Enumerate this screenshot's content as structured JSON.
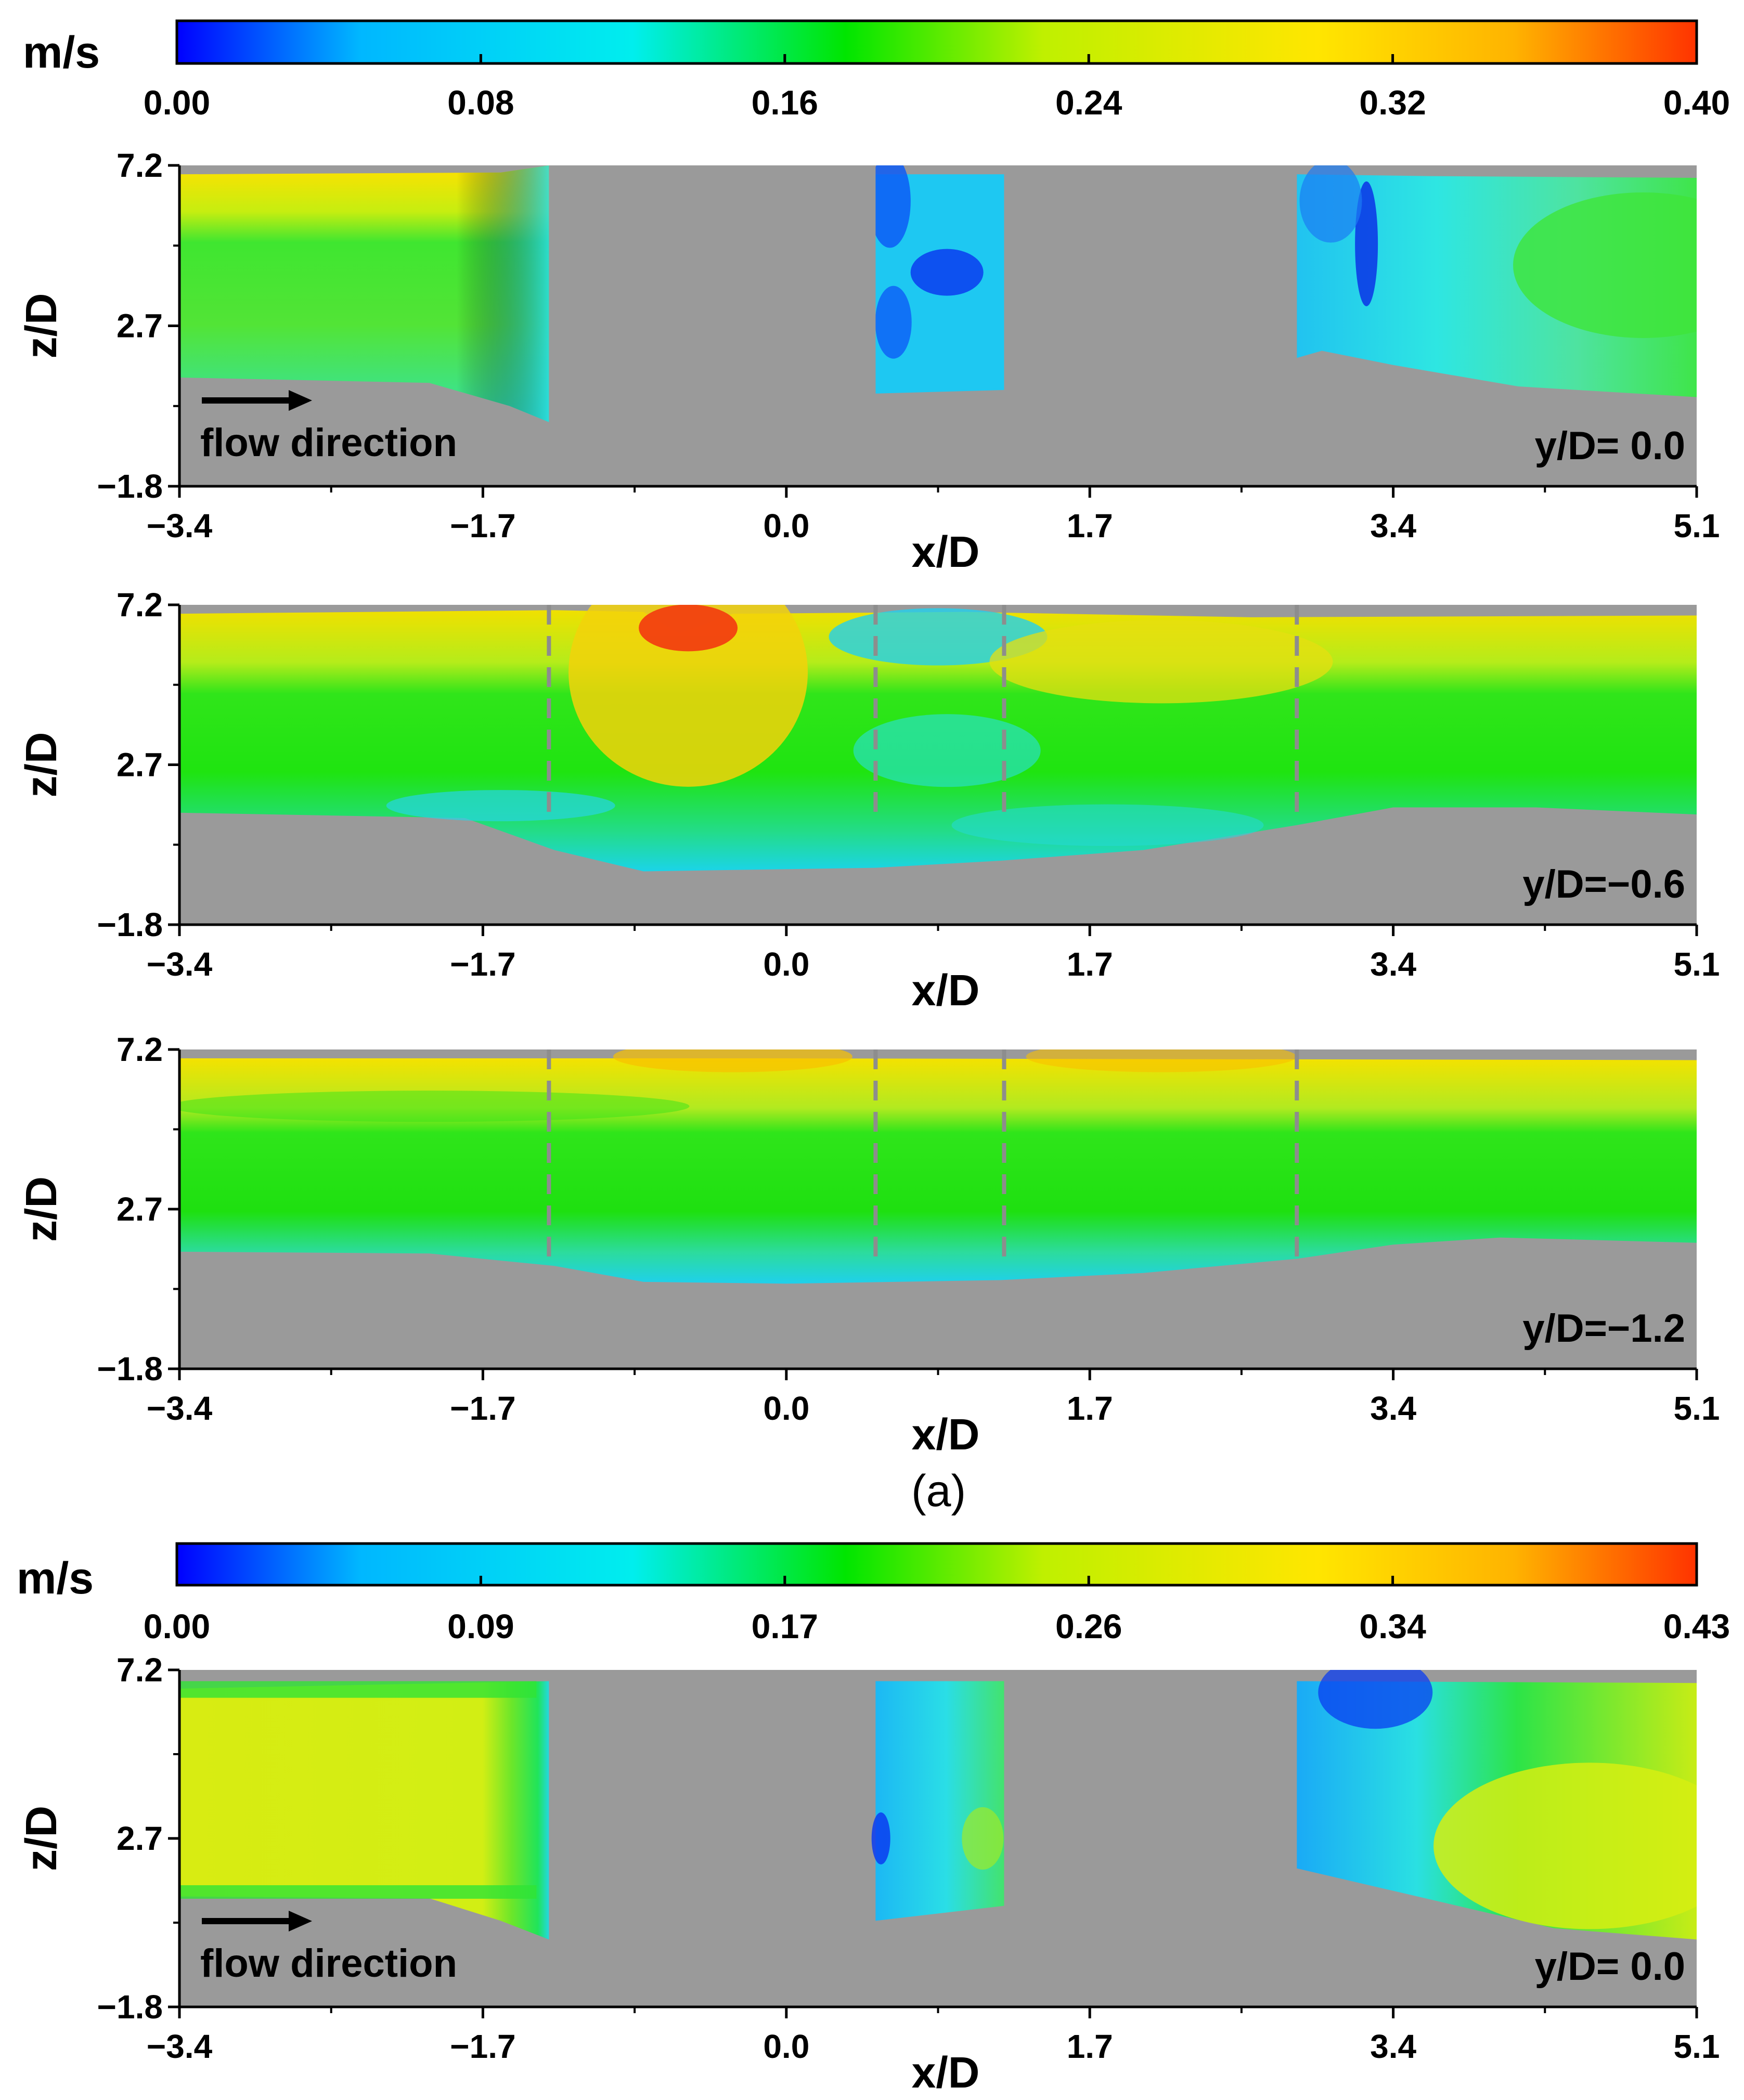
{
  "figure": {
    "panel_label": "(a)"
  },
  "chart_data": [
    {
      "type": "heatmap",
      "colorbar": {
        "unit": "m/s",
        "ticks": [
          "0.00",
          "0.08",
          "0.16",
          "0.24",
          "0.32",
          "0.40"
        ],
        "range": [
          0,
          0.4
        ],
        "colormap": [
          "#0000ff",
          "#00b7ff",
          "#00eeee",
          "#00e600",
          "#bff000",
          "#ffe600",
          "#ffb300",
          "#ff3300"
        ]
      },
      "xlabel": "x/D",
      "ylabel": "z/D",
      "xticks": [
        "−3.4",
        "−1.7",
        "0.0",
        "1.7",
        "3.4",
        "5.1"
      ],
      "yticks": [
        "−1.8",
        "2.7",
        "7.2"
      ],
      "xlim": [
        -3.4,
        5.1
      ],
      "ylim": [
        -1.8,
        7.2
      ],
      "annotation": "y/D= 0.0",
      "arrow_label": "flow direction",
      "obstacles": "solid",
      "regions": [
        {
          "x": [
            -3.4,
            -1.3
          ],
          "bed_y": 1.2,
          "top_y": 6.9,
          "base_color": "#5ce828"
        },
        {
          "x": [
            0.5,
            1.2
          ],
          "bed_y": 0.8,
          "top_y": 6.9,
          "base_color": "#19d2f0"
        },
        {
          "x": [
            2.9,
            5.1
          ],
          "bed_y": 1.5,
          "top_y": 6.8,
          "base_color": "#24dde6"
        }
      ]
    },
    {
      "type": "heatmap",
      "xlabel": "x/D",
      "ylabel": "z/D",
      "xticks": [
        "−3.4",
        "−1.7",
        "0.0",
        "1.7",
        "3.4",
        "5.1"
      ],
      "yticks": [
        "−1.8",
        "2.7",
        "7.2"
      ],
      "xlim": [
        -3.4,
        5.1
      ],
      "ylim": [
        -1.8,
        7.2
      ],
      "annotation": "y/D=−0.6",
      "obstacles": "dashed",
      "dashed_x": [
        -1.33,
        0.5,
        1.22,
        2.86
      ]
    },
    {
      "type": "heatmap",
      "xlabel": "x/D",
      "ylabel": "z/D",
      "xticks": [
        "−3.4",
        "−1.7",
        "0.0",
        "1.7",
        "3.4",
        "5.1"
      ],
      "yticks": [
        "−1.8",
        "2.7",
        "7.2"
      ],
      "xlim": [
        -3.4,
        5.1
      ],
      "ylim": [
        -1.8,
        7.2
      ],
      "annotation": "y/D=−1.2",
      "obstacles": "dashed",
      "dashed_x": [
        -1.33,
        0.5,
        1.22,
        2.86
      ]
    },
    {
      "type": "heatmap",
      "colorbar": {
        "unit": "m/s",
        "ticks": [
          "0.00",
          "0.09",
          "0.17",
          "0.26",
          "0.34",
          "0.43"
        ],
        "range": [
          0,
          0.43
        ],
        "colormap": [
          "#0000ff",
          "#00b7ff",
          "#00eeee",
          "#00e600",
          "#bff000",
          "#ffe600",
          "#ffb300",
          "#ff3300"
        ]
      },
      "xlabel": "x/D",
      "ylabel": "z/D",
      "xticks": [
        "−3.4",
        "−1.7",
        "0.0",
        "1.7",
        "3.4",
        "5.1"
      ],
      "yticks": [
        "−1.8",
        "2.7",
        "7.2"
      ],
      "xlim": [
        -3.4,
        5.1
      ],
      "ylim": [
        -1.8,
        7.2
      ],
      "annotation": "y/D= 0.0",
      "arrow_label": "flow direction",
      "obstacles": "solid"
    }
  ]
}
